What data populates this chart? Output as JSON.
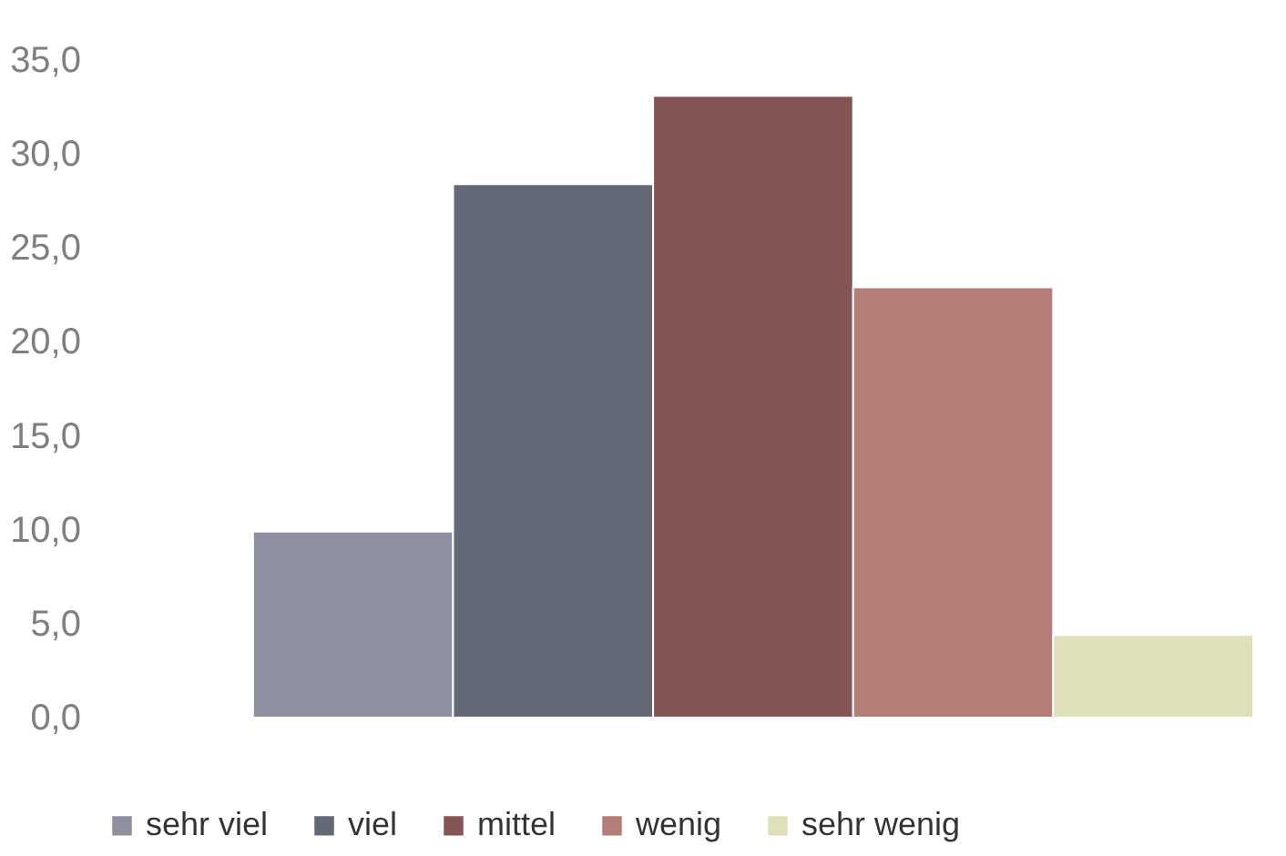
{
  "chart_data": {
    "type": "bar",
    "categories": [
      null
    ],
    "series": [
      {
        "name": "sehr viel",
        "color": "#8e909f",
        "values": [
          9.9
        ]
      },
      {
        "name": "viel",
        "color": "#636977",
        "values": [
          28.4
        ]
      },
      {
        "name": "mittel",
        "color": "#845555",
        "values": [
          33.1
        ]
      },
      {
        "name": "wenig",
        "color": "#b47e78",
        "values": [
          22.9
        ]
      },
      {
        "name": "sehr wenig",
        "color": "#dfdfb9",
        "values": [
          4.4
        ]
      }
    ],
    "ylim": [
      0,
      35
    ],
    "yticks": [
      {
        "value": 0,
        "label": "0,0"
      },
      {
        "value": 5,
        "label": "5,0"
      },
      {
        "value": 10,
        "label": "10,0"
      },
      {
        "value": 15,
        "label": "15,0"
      },
      {
        "value": 20,
        "label": "20,0"
      },
      {
        "value": 25,
        "label": "25,0"
      },
      {
        "value": 30,
        "label": "30,0"
      },
      {
        "value": 35,
        "label": "35,0"
      }
    ],
    "grid": false,
    "legend": "bottom"
  }
}
